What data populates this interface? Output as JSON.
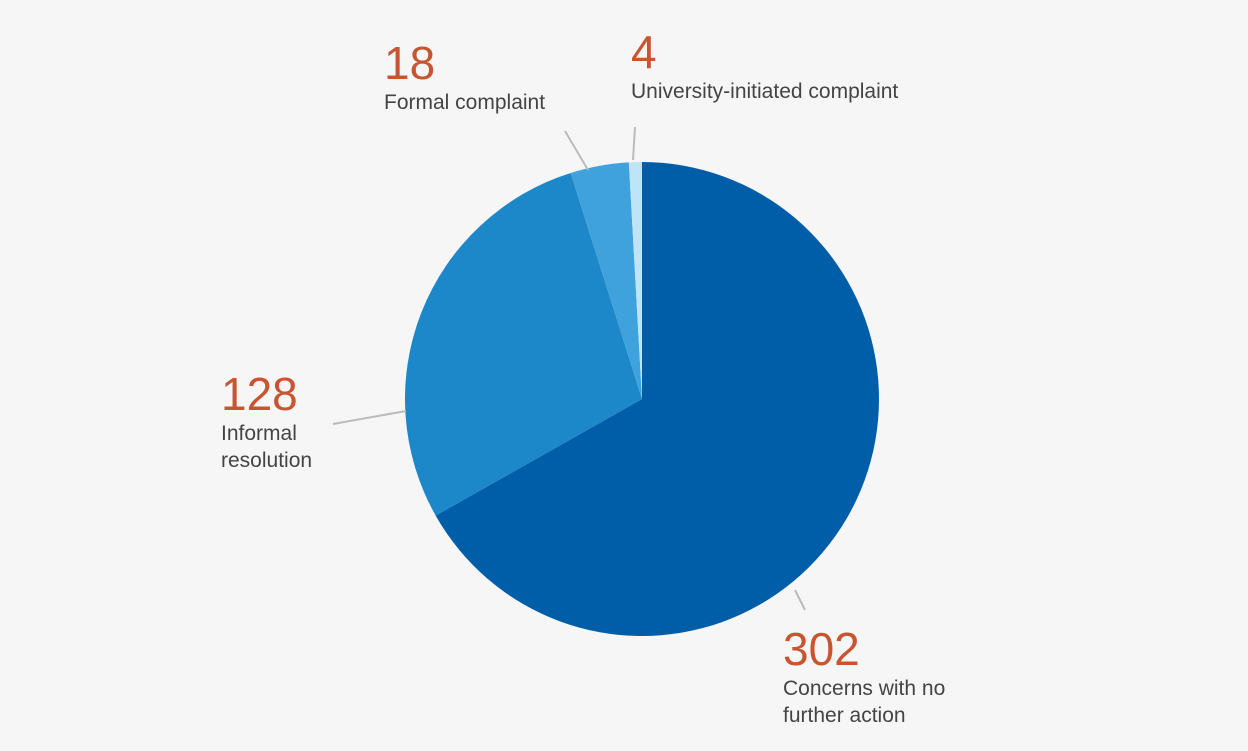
{
  "chart_data": {
    "type": "pie",
    "value_color": "#c8552f",
    "leader_color": "#bbbbbb",
    "slices": [
      {
        "label": [
          "Concerns with no",
          "further action"
        ],
        "value": 302,
        "color": "#005ea8"
      },
      {
        "label": [
          "Informal",
          "resolution"
        ],
        "value": 128,
        "color": "#1c87c9"
      },
      {
        "label": [
          "Formal complaint"
        ],
        "value": 18,
        "color": "#3fa2dc"
      },
      {
        "label": [
          "University-initiated complaint"
        ],
        "value": 4,
        "color": "#bfe4f7"
      }
    ]
  }
}
